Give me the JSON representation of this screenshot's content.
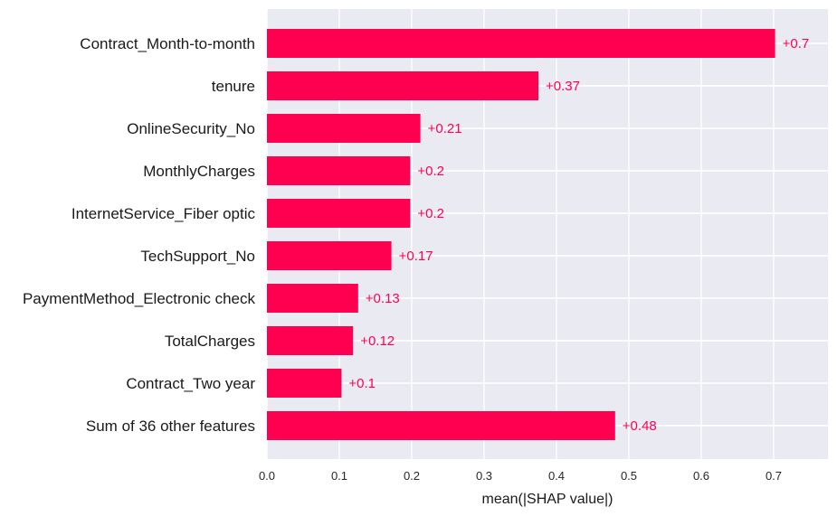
{
  "chart_data": {
    "type": "bar",
    "orientation": "horizontal",
    "categories": [
      "Contract_Month-to-month",
      "tenure",
      "OnlineSecurity_No",
      "MonthlyCharges",
      "InternetService_Fiber optic",
      "TechSupport_No",
      "PaymentMethod_Electronic check",
      "TotalCharges",
      "Contract_Two year",
      "Sum of 36 other features"
    ],
    "values": [
      0.702,
      0.375,
      0.212,
      0.198,
      0.198,
      0.172,
      0.126,
      0.119,
      0.103,
      0.481
    ],
    "value_labels": [
      "+0.7",
      "+0.37",
      "+0.21",
      "+0.2",
      "+0.2",
      "+0.17",
      "+0.13",
      "+0.12",
      "+0.1",
      "+0.48"
    ],
    "xlabel": "mean(|SHAP value|)",
    "ylabel": "",
    "xlim": [
      0,
      0.775
    ],
    "xticks": [
      0.0,
      0.1,
      0.2,
      0.3,
      0.4,
      0.5,
      0.6,
      0.7
    ],
    "xtick_labels": [
      "0.0",
      "0.1",
      "0.2",
      "0.3",
      "0.4",
      "0.5",
      "0.6",
      "0.7"
    ],
    "grid": true,
    "colors": {
      "bar": "#ff0051",
      "value_text": "#ff0051",
      "plot_background": "#eaeaf2",
      "grid": "#ffffff"
    }
  }
}
